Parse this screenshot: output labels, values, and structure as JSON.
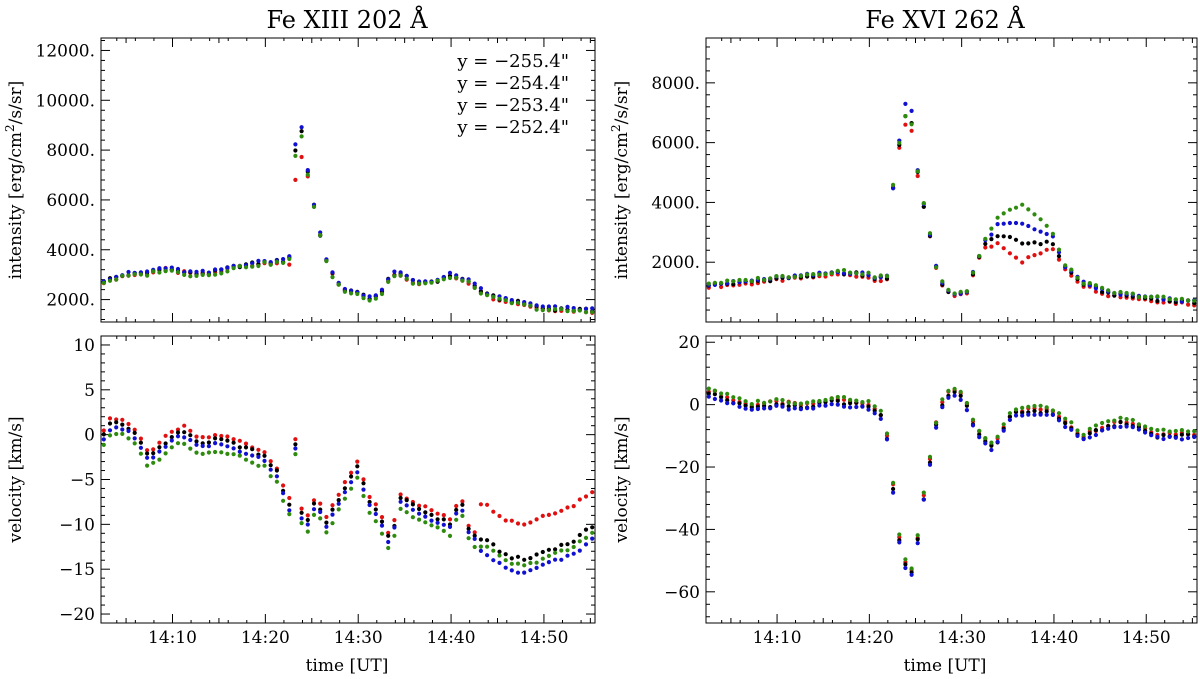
{
  "figure": {
    "titles": [
      "Fe XIII 202 Å",
      "Fe XVI 262 Å"
    ],
    "x_axis_label": "time [UT]"
  },
  "chart_data": [
    {
      "type": "scatter",
      "panel": "fe13-intensity",
      "title": "Fe XIII 202 Å",
      "ylabel": "intensity [erg/cm2/s/sr]",
      "xlabel": "",
      "xunit": "minutes after 14:00 UT",
      "xlim": [
        2.3,
        55.5
      ],
      "ylim": [
        1100,
        12500
      ],
      "yticks": [
        2000,
        4000,
        6000,
        8000,
        10000,
        12000
      ],
      "ytick_labels": [
        "2000.",
        "4000.",
        "6000.",
        "8000.",
        "10000.",
        "12000."
      ],
      "xticks": [
        10,
        20,
        30,
        40,
        50
      ],
      "xtick_labels": [],
      "legend": {
        "placement": "top-right",
        "entries": [
          "y = −255.4\"",
          "y = −254.4\"",
          "y = −253.4\"",
          "y = −252.4\""
        ]
      },
      "knots": {
        "base": [
          [
            2.5,
            2750
          ],
          [
            5,
            3000
          ],
          [
            7,
            3050
          ],
          [
            9,
            3250
          ],
          [
            12,
            3050
          ],
          [
            14,
            3050
          ],
          [
            17,
            3350
          ],
          [
            20,
            3500
          ],
          [
            22,
            3550
          ],
          [
            22.6,
            3600
          ],
          [
            23.5,
            9200
          ],
          [
            24.2,
            7900
          ],
          [
            24.8,
            6600
          ],
          [
            25.4,
            5500
          ],
          [
            25.8,
            4800
          ],
          [
            26.5,
            3600
          ],
          [
            27.5,
            2800
          ],
          [
            28.5,
            2400
          ],
          [
            30,
            2250
          ],
          [
            31.5,
            2050
          ],
          [
            32.5,
            2250
          ],
          [
            33.5,
            3000
          ],
          [
            34.5,
            3050
          ],
          [
            36,
            2700
          ],
          [
            37.5,
            2700
          ],
          [
            39,
            2800
          ],
          [
            40,
            3000
          ],
          [
            42,
            2700
          ],
          [
            44,
            2150
          ],
          [
            47,
            1900
          ],
          [
            50,
            1650
          ],
          [
            53,
            1600
          ],
          [
            55.5,
            1550
          ]
        ]
      },
      "series": [
        {
          "name": "y = −255.4\"",
          "color": "#e01010",
          "offsets": {
            "spike": -1000,
            "spike_x": 23.5,
            "global": -30
          }
        },
        {
          "name": "y = −254.4\"",
          "color": "#000000",
          "offsets": {
            "spike": 500,
            "spike_x": 23.5,
            "global": 0
          }
        },
        {
          "name": "y = −253.4\"",
          "color": "#1010d0",
          "offsets": {
            "spike": 750,
            "spike_x": 23.5,
            "global": 40
          }
        },
        {
          "name": "y = −252.4\"",
          "color": "#2e8b0e",
          "offsets": {
            "spike": 250,
            "spike_x": 23.5,
            "global": -60
          }
        }
      ]
    },
    {
      "type": "scatter",
      "panel": "fe16-intensity",
      "title": "Fe XVI 262 Å",
      "ylabel": "intensity [erg/cm2/s/sr]",
      "xlabel": "",
      "xunit": "minutes after 14:00 UT",
      "xlim": [
        2.3,
        55.5
      ],
      "ylim": [
        0,
        9500
      ],
      "yticks": [
        2000,
        4000,
        6000,
        8000
      ],
      "ytick_labels": [
        "2000.",
        "4000.",
        "6000.",
        "8000."
      ],
      "xticks": [
        10,
        20,
        30,
        40,
        50
      ],
      "xtick_labels": [],
      "knots": {
        "base": [
          [
            2.5,
            1250
          ],
          [
            6,
            1300
          ],
          [
            10,
            1450
          ],
          [
            14,
            1550
          ],
          [
            17,
            1650
          ],
          [
            19,
            1600
          ],
          [
            21,
            1450
          ],
          [
            22.2,
            1500
          ],
          [
            22.7,
            5500
          ],
          [
            23.5,
            6200
          ],
          [
            24.2,
            7800
          ],
          [
            24.8,
            6300
          ],
          [
            25.5,
            4300
          ],
          [
            26.2,
            3600
          ],
          [
            27,
            2000
          ],
          [
            28,
            1200
          ],
          [
            29,
            900
          ],
          [
            30.5,
            950
          ],
          [
            31.5,
            1900
          ],
          [
            32.5,
            2600
          ],
          [
            34,
            3100
          ],
          [
            36,
            3000
          ],
          [
            38,
            2900
          ],
          [
            40,
            2700
          ],
          [
            41,
            1900
          ],
          [
            43,
            1300
          ],
          [
            46,
            950
          ],
          [
            50,
            800
          ],
          [
            53,
            700
          ],
          [
            55.5,
            650
          ]
        ]
      },
      "series": [
        {
          "name": "y = −255.4\"",
          "color": "#e01010",
          "offsets": {
            "hump": -900,
            "hump_range": [
              32,
              41
            ],
            "spike": -600,
            "spike_x": 24.2,
            "global": -50
          }
        },
        {
          "name": "y = −254.4\"",
          "color": "#000000",
          "offsets": {
            "hump": -350,
            "hump_range": [
              32,
              41
            ],
            "spike": -300,
            "spike_x": 24.2,
            "global": 0
          }
        },
        {
          "name": "y = −253.4\"",
          "color": "#1010d0",
          "offsets": {
            "hump": 300,
            "hump_range": [
              32,
              41
            ],
            "spike": 250,
            "spike_x": 24.2,
            "global": 30
          }
        },
        {
          "name": "y = −252.4\"",
          "color": "#2e8b0e",
          "offsets": {
            "hump": 900,
            "hump_range": [
              32,
              41
            ],
            "spike": -400,
            "spike_x": 24.2,
            "global": 60
          }
        }
      ]
    },
    {
      "type": "scatter",
      "panel": "fe13-velocity",
      "ylabel": "velocity [km/s]",
      "xlabel": "time [UT]",
      "xunit": "minutes after 14:00 UT",
      "xlim": [
        2.3,
        55.5
      ],
      "ylim": [
        -21,
        11
      ],
      "yticks": [
        -20,
        -15,
        -10,
        -5,
        0,
        5,
        10
      ],
      "ytick_labels": [
        "−20",
        "−15",
        "−10",
        "−5",
        "0",
        "5",
        "10"
      ],
      "xticks": [
        10,
        20,
        30,
        40,
        50
      ],
      "xtick_labels": [
        "14:10",
        "14:20",
        "14:30",
        "14:40",
        "14:50"
      ],
      "knots": {
        "base": [
          [
            2.5,
            0
          ],
          [
            3.5,
            1.5
          ],
          [
            5,
            1
          ],
          [
            6,
            0
          ],
          [
            7.5,
            -2.5
          ],
          [
            9,
            -1
          ],
          [
            11,
            0.5
          ],
          [
            13,
            -1
          ],
          [
            15,
            -0.5
          ],
          [
            18,
            -1.5
          ],
          [
            20,
            -2.5
          ],
          [
            21.5,
            -4.5
          ],
          [
            22.5,
            -8.5
          ],
          [
            23.5,
            1.5
          ],
          [
            24,
            -11
          ],
          [
            25.5,
            -7
          ],
          [
            26.5,
            -10
          ],
          [
            28.5,
            -6
          ],
          [
            30,
            -3.5
          ],
          [
            31,
            -7
          ],
          [
            32,
            -8.5
          ],
          [
            33.5,
            -12
          ],
          [
            34.5,
            -7
          ],
          [
            36,
            -8
          ],
          [
            38,
            -9
          ],
          [
            40,
            -10
          ],
          [
            41,
            -7
          ],
          [
            42,
            -11
          ],
          [
            44,
            -12
          ],
          [
            46,
            -13.5
          ],
          [
            48,
            -14
          ],
          [
            50,
            -13
          ],
          [
            53,
            -12
          ],
          [
            55.5,
            -10
          ]
        ]
      },
      "series": [
        {
          "name": "y = −255.4\"",
          "color": "#e01010",
          "offsets": {
            "late": 3.5,
            "late_from": 43,
            "global": 0.5
          }
        },
        {
          "name": "y = −254.4\"",
          "color": "#000000",
          "offsets": {
            "late": 0,
            "late_from": 43,
            "global": 0
          }
        },
        {
          "name": "y = −253.4\"",
          "color": "#1010d0",
          "offsets": {
            "late": -1,
            "late_from": 43,
            "global": -0.5
          }
        },
        {
          "name": "y = −252.4\"",
          "color": "#2e8b0e",
          "offsets": {
            "late": 0.5,
            "late_from": 43,
            "global": -1.2
          }
        }
      ]
    },
    {
      "type": "scatter",
      "panel": "fe16-velocity",
      "ylabel": "velocity [km/s]",
      "xlabel": "time [UT]",
      "xunit": "minutes after 14:00 UT",
      "xlim": [
        2.3,
        55.5
      ],
      "ylim": [
        -70,
        22
      ],
      "yticks": [
        -60,
        -40,
        -20,
        0,
        20
      ],
      "ytick_labels": [
        "−60",
        "−40",
        "−20",
        "0",
        "20"
      ],
      "xticks": [
        10,
        20,
        30,
        40,
        50
      ],
      "xtick_labels": [
        "14:10",
        "14:20",
        "14:30",
        "14:40",
        "14:50"
      ],
      "knots": {
        "base": [
          [
            2.5,
            4
          ],
          [
            5,
            1
          ],
          [
            7,
            -1
          ],
          [
            10,
            0
          ],
          [
            13,
            -1
          ],
          [
            16,
            1
          ],
          [
            19,
            0
          ],
          [
            21,
            -2
          ],
          [
            21.8,
            -8
          ],
          [
            22.5,
            -25
          ],
          [
            23.3,
            -45
          ],
          [
            24,
            -52
          ],
          [
            24.7,
            -54
          ],
          [
            25.4,
            -40
          ],
          [
            26,
            -28
          ],
          [
            26.8,
            -15
          ],
          [
            27.5,
            -2
          ],
          [
            28.5,
            3
          ],
          [
            29.5,
            4
          ],
          [
            30.5,
            0
          ],
          [
            31.5,
            -8
          ],
          [
            32.5,
            -12
          ],
          [
            33.5,
            -14
          ],
          [
            34.5,
            -8
          ],
          [
            35.5,
            -3
          ],
          [
            38,
            -2
          ],
          [
            40,
            -3
          ],
          [
            42,
            -8
          ],
          [
            43,
            -11
          ],
          [
            45,
            -8
          ],
          [
            47,
            -6
          ],
          [
            49,
            -7
          ],
          [
            51,
            -10
          ],
          [
            53,
            -10
          ],
          [
            55.5,
            -10
          ]
        ]
      },
      "series": [
        {
          "name": "y = −255.4\"",
          "color": "#e01010",
          "offsets": {
            "global": 0.8
          }
        },
        {
          "name": "y = −254.4\"",
          "color": "#000000",
          "offsets": {
            "global": 0
          }
        },
        {
          "name": "y = −253.4\"",
          "color": "#1010d0",
          "offsets": {
            "global": -0.8
          }
        },
        {
          "name": "y = −252.4\"",
          "color": "#2e8b0e",
          "offsets": {
            "global": 1.5
          }
        }
      ]
    }
  ]
}
